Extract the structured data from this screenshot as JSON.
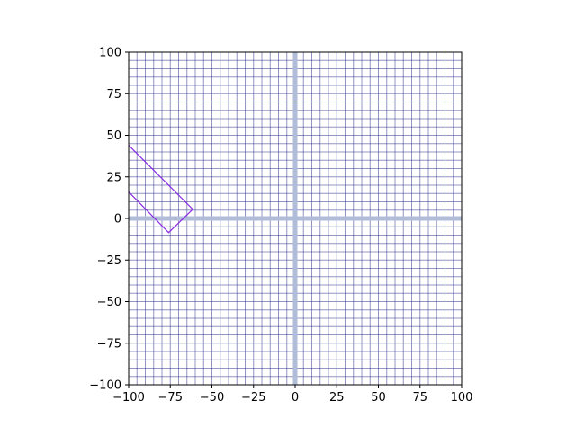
{
  "chart_data": {
    "type": "line",
    "title": "",
    "xlabel": "",
    "ylabel": "",
    "xlim": [
      -100,
      100
    ],
    "ylim": [
      -100,
      100
    ],
    "grid": true,
    "grid_minor_step": 5,
    "aspect": "equal",
    "x_ticks": [
      -100,
      -75,
      -50,
      -25,
      0,
      25,
      50,
      75,
      100
    ],
    "y_ticks": [
      -100,
      -75,
      -50,
      -25,
      0,
      25,
      50,
      75,
      100
    ],
    "x_tick_labels": [
      "−100",
      "−75",
      "−50",
      "−25",
      "0",
      "25",
      "50",
      "75",
      "100"
    ],
    "y_tick_labels": [
      "−100",
      "−75",
      "−50",
      "−25",
      "0",
      "25",
      "50",
      "75",
      "100"
    ],
    "axes_lines": {
      "x": 0,
      "y": 0
    },
    "series": [
      {
        "x": [
          -100,
          -61.5,
          -76,
          -100
        ],
        "y": [
          44,
          5.5,
          -8.5,
          16
        ],
        "closed": false
      }
    ],
    "colors": {
      "grid": "#2a2a88",
      "axes_highlight": "#b0bcd8",
      "shape": "#8a2be2",
      "spine": "#000000"
    }
  }
}
